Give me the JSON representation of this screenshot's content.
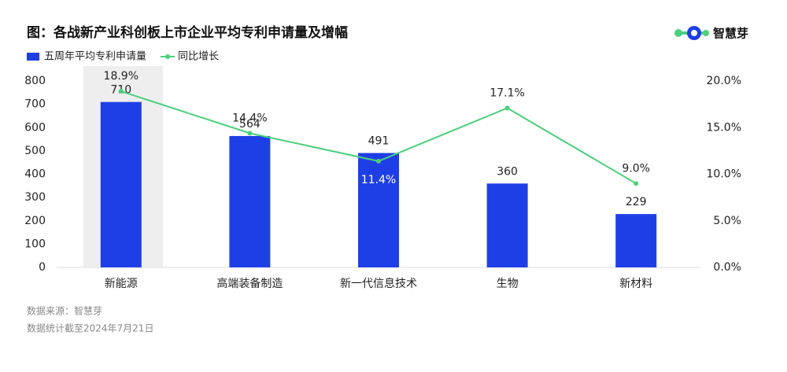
{
  "chart_data": {
    "type": "bar-line",
    "title": "图：各战新产业科创板上市企业平均专利申请量及增幅",
    "brand": "智慧芽",
    "notes": [
      "数据来源：智慧芽",
      "数据统计截至2024年7月21日"
    ],
    "categories": [
      "新能源",
      "高端装备制造",
      "新一代信息技术",
      "生物",
      "新材料"
    ],
    "series": [
      {
        "name": "五周年平均专利申请量",
        "type": "bar",
        "color": "#1f3fe6",
        "values": [
          710,
          564,
          491,
          360,
          229
        ]
      },
      {
        "name": "同比增长",
        "type": "line",
        "color": "#4ccf7c",
        "axis": "y2",
        "values": [
          18.9,
          14.4,
          11.4,
          17.1,
          9.0
        ],
        "value_labels": [
          "18.9%",
          "14.4%",
          "11.4%",
          "17.1%",
          "9.0%"
        ]
      }
    ],
    "ylim": [
      0,
      800
    ],
    "yticks": [
      0,
      100,
      200,
      300,
      400,
      500,
      600,
      700,
      800
    ],
    "y2lim": [
      0,
      20
    ],
    "y2ticks": [
      {
        "value": 0,
        "label": "0.0%"
      },
      {
        "value": 5,
        "label": "5.0%"
      },
      {
        "value": 10,
        "label": "10.0%"
      },
      {
        "value": 15,
        "label": "15.0%"
      },
      {
        "value": 20,
        "label": "20.0%"
      }
    ],
    "grid": false,
    "legend": "top-left"
  }
}
